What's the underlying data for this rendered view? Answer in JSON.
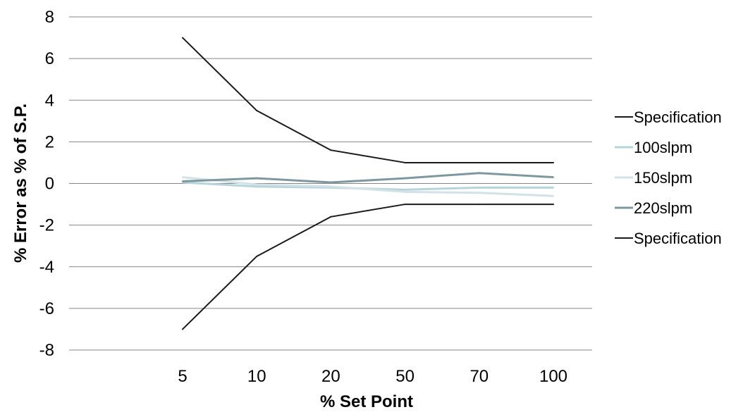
{
  "chart_data": {
    "type": "line",
    "categories": [
      "5",
      "10",
      "20",
      "50",
      "70",
      "100"
    ],
    "xlabel": "% Set Point",
    "ylabel": "% Error as % of S.P.",
    "ylim": [
      -8,
      8
    ],
    "yticks": [
      8,
      6,
      4,
      2,
      0,
      -2,
      -4,
      -6,
      -8
    ],
    "grid": true,
    "legend_position": "right",
    "series": [
      {
        "name": "Specification",
        "color": "#1a1a1a",
        "values": [
          7,
          3.5,
          1.6,
          1,
          1,
          1
        ]
      },
      {
        "name": "100slpm",
        "color": "#b7d4da",
        "values": [
          0.05,
          -0.15,
          -0.2,
          -0.3,
          -0.2,
          -0.2
        ]
      },
      {
        "name": "150slpm",
        "color": "#d2e2e6",
        "values": [
          0.3,
          -0.05,
          -0.15,
          -0.4,
          -0.45,
          -0.6
        ]
      },
      {
        "name": "220slpm",
        "color": "#7f989f",
        "values": [
          0.1,
          0.25,
          0.05,
          0.25,
          0.5,
          0.3
        ]
      },
      {
        "name": "Specification",
        "color": "#1a1a1a",
        "values": [
          -7,
          -3.5,
          -1.6,
          -1,
          -1,
          -1
        ]
      }
    ]
  }
}
